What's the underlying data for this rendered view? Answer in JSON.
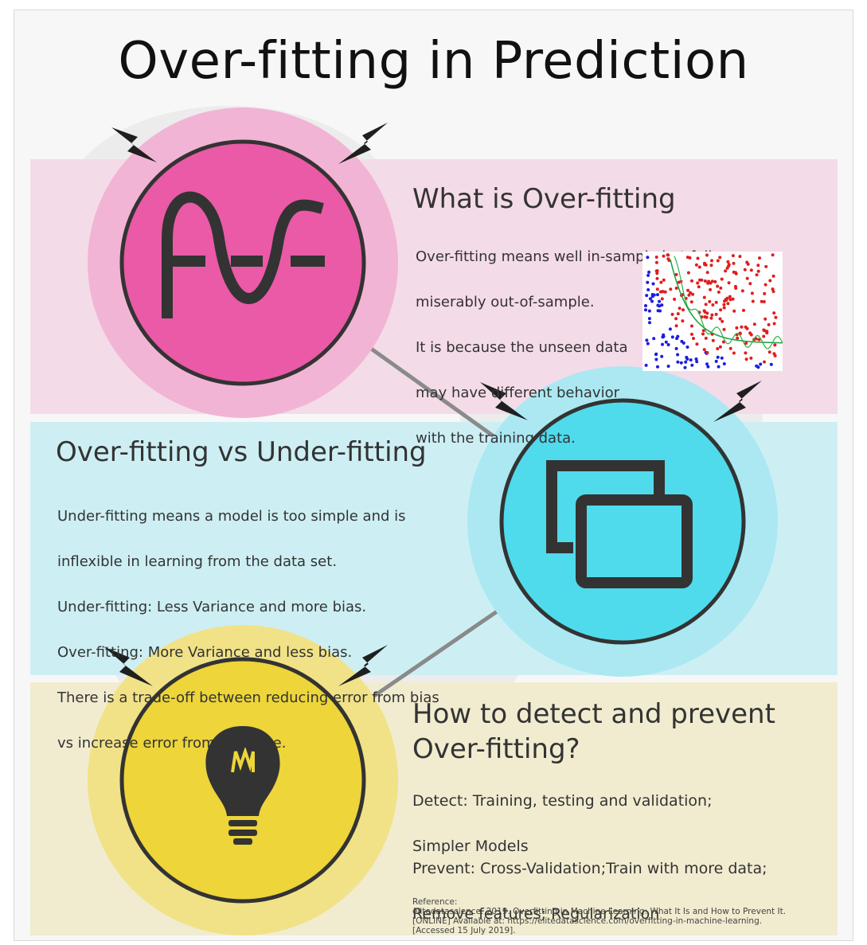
{
  "title": "Over-fitting in Prediction",
  "colors": {
    "pink_band": "#f4dbe8",
    "pink_halo": "#f2b4d4",
    "pink_circle": "#ea5aa6",
    "cyan_band": "#cdeff4",
    "cyan_halo": "#abe8f2",
    "cyan_circle": "#4fdbec",
    "yellow_band": "#f1ecd0",
    "yellow_halo": "#f1e287",
    "yellow_circle": "#edd53a",
    "icon_dark": "#333333"
  },
  "sections": [
    {
      "heading": "What is Over-fitting",
      "icon": "overfit-curve-icon",
      "lines": [
        "Over-fitting means well in-sample but fails",
        "miserably out-of-sample.",
        "It is because the unseen data",
        "may have different behavior",
        "with the training data."
      ]
    },
    {
      "heading": "Over-fitting vs Under-fitting",
      "icon": "windows-icon",
      "lines": [
        "Under-fitting means a model is too simple and is",
        "inflexible in learning from the data set.",
        "Under-fitting: Less Variance and more bias.",
        "Over-fitting: More Variance and less bias.",
        "There is a trade-off between reducing error from bias",
        "vs increase error from variance."
      ]
    },
    {
      "heading_line1": "How to detect and prevent",
      "heading_line2": "Over-fitting?",
      "icon": "lightbulb-icon",
      "detect_line1": "Detect: Training, testing and validation;",
      "detect_line2": "Simpler Models",
      "prevent_line1": "Prevent: Cross-Validation;Train with more data;",
      "prevent_line2": "Remove features; Regularization"
    }
  ],
  "reference": {
    "label": "Reference:",
    "line1": "elitedatascience. 2019. Overfitting in Machine Learning: What It Is and How to Prevent It.",
    "line2": "[ONLINE] Available at: https://elitedatascience.com/overfitting-in-machine-learning.",
    "line3": "[Accessed 15 July 2019]."
  }
}
